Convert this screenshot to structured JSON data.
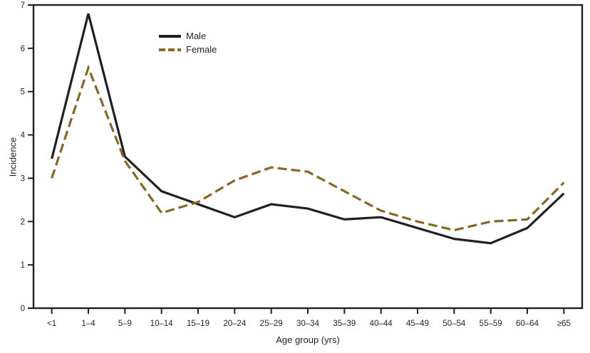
{
  "figure": {
    "axis_color": "#231f20",
    "text_color": "#231f20",
    "background": "#ffffff"
  },
  "chart_data": {
    "type": "line",
    "title": "",
    "xlabel": "Age group (yrs)",
    "ylabel": "Incidence",
    "categories": [
      "<1",
      "1–4",
      "5–9",
      "10–14",
      "15–19",
      "20–24",
      "25–29",
      "30–34",
      "35–39",
      "40–44",
      "45–49",
      "50–54",
      "55–59",
      "60–64",
      "≥65"
    ],
    "series": [
      {
        "name": "Male",
        "color": "#231f20",
        "style": "solid",
        "values": [
          3.45,
          6.8,
          3.5,
          2.7,
          2.4,
          2.1,
          2.4,
          2.3,
          2.05,
          2.1,
          1.85,
          1.6,
          1.5,
          1.85,
          2.65
        ]
      },
      {
        "name": "Female",
        "color": "#8a6625",
        "style": "dashed",
        "values": [
          3.0,
          5.55,
          3.4,
          2.2,
          2.45,
          2.95,
          3.25,
          3.15,
          2.7,
          2.25,
          2.0,
          1.8,
          2.0,
          2.05,
          2.9
        ]
      }
    ],
    "ylim": [
      0,
      7
    ],
    "yticks": [
      0,
      1,
      2,
      3,
      4,
      5,
      6,
      7
    ],
    "grid": false,
    "legend_position": "upper-left-inside"
  }
}
